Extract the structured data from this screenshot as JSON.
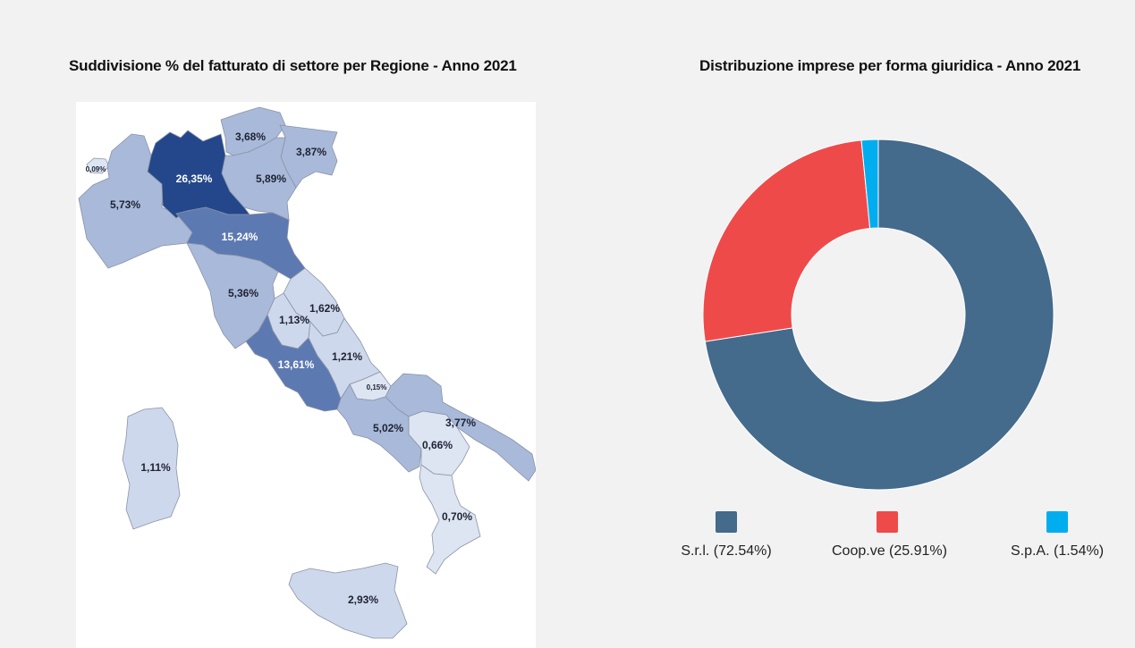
{
  "chart_data": [
    {
      "type": "map",
      "title": "Suddivisione % del fatturato di settore per Regione - Anno 2021",
      "regions": [
        {
          "name": "Valle d'Aosta",
          "label": "0,09%",
          "value": 0.09
        },
        {
          "name": "Piemonte",
          "label": "5,73%",
          "value": 5.73
        },
        {
          "name": "Lombardia",
          "label": "26,35%",
          "value": 26.35
        },
        {
          "name": "Trentino-Alto Adige",
          "label": "3,68%",
          "value": 3.68
        },
        {
          "name": "Friuli-Venezia Giulia",
          "label": "3,87%",
          "value": 3.87
        },
        {
          "name": "Veneto",
          "label": "5,89%",
          "value": 5.89
        },
        {
          "name": "Emilia-Romagna",
          "label": "15,24%",
          "value": 15.24
        },
        {
          "name": "Toscana",
          "label": "5,36%",
          "value": 5.36
        },
        {
          "name": "Marche",
          "label": "1,62%",
          "value": 1.62
        },
        {
          "name": "Umbria",
          "label": "1,13%",
          "value": 1.13
        },
        {
          "name": "Lazio",
          "label": "13,61%",
          "value": 13.61
        },
        {
          "name": "Abruzzo",
          "label": "1,21%",
          "value": 1.21
        },
        {
          "name": "Molise",
          "label": "0,15%",
          "value": 0.15
        },
        {
          "name": "Campania",
          "label": "5,02%",
          "value": 5.02
        },
        {
          "name": "Puglia",
          "label": "3,77%",
          "value": 3.77
        },
        {
          "name": "Basilicata",
          "label": "0,66%",
          "value": 0.66
        },
        {
          "name": "Calabria",
          "label": "0,70%",
          "value": 0.7
        },
        {
          "name": "Sicilia",
          "label": "2,93%",
          "value": 2.93
        },
        {
          "name": "Sardegna",
          "label": "1,11%",
          "value": 1.11
        }
      ],
      "colors": {
        "darkest": "#23478a",
        "dark": "#5d79b1",
        "mid": "#a9b9d9",
        "light": "#cdd8ec",
        "lightest": "#dde5f3"
      }
    },
    {
      "type": "pie",
      "donut": true,
      "title": "Distribuzione imprese per forma giuridica - Anno 2021",
      "slices": [
        {
          "label": "S.r.l. (72.54%)",
          "value": 72.54,
          "color": "#446a8c"
        },
        {
          "label": "Coop.ve (25.91%)",
          "value": 25.91,
          "color": "#ef4a4a"
        },
        {
          "label": "S.p.A. (1.54%)",
          "value": 1.54,
          "color": "#00adee"
        }
      ],
      "legend_position": "bottom"
    }
  ]
}
